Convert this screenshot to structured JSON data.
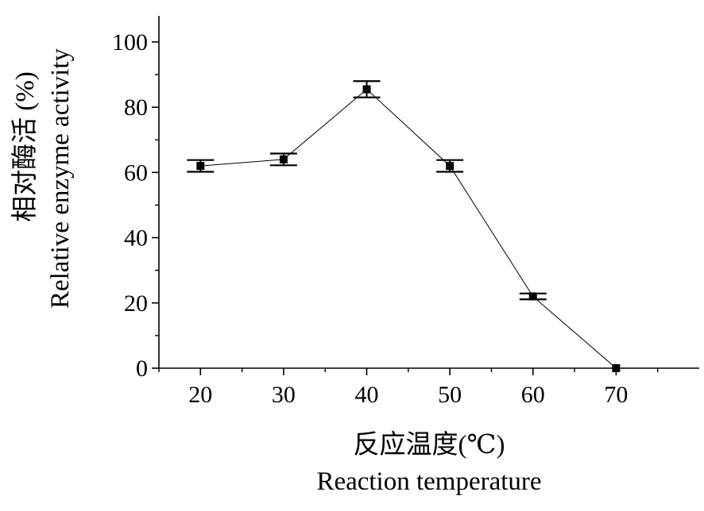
{
  "chart_data": {
    "type": "line",
    "x": [
      20,
      30,
      40,
      50,
      60,
      70
    ],
    "series": [
      {
        "values": [
          62,
          64,
          85.5,
          62,
          22,
          0
        ],
        "error": [
          1.8,
          1.8,
          2.5,
          1.8,
          0.9,
          0
        ]
      }
    ],
    "xlim": [
      15,
      80
    ],
    "ylim": [
      0,
      108
    ],
    "xticks": [
      20,
      30,
      40,
      50,
      60,
      70
    ],
    "yticks": [
      0,
      20,
      40,
      60,
      80,
      100
    ],
    "xtick_labels": [
      "20",
      "30",
      "40",
      "50",
      "60",
      "70"
    ],
    "ytick_labels": [
      "0",
      "20",
      "40",
      "60",
      "80",
      "100"
    ],
    "xlabel": "反应温度(℃)",
    "xlabel_en": "Reaction temperature",
    "ylabel": "相对酶活 (%)",
    "ylabel_en": "Relative enzyme activity",
    "grid": false,
    "legend": "none",
    "line_color": "#000000",
    "marker": "square"
  }
}
